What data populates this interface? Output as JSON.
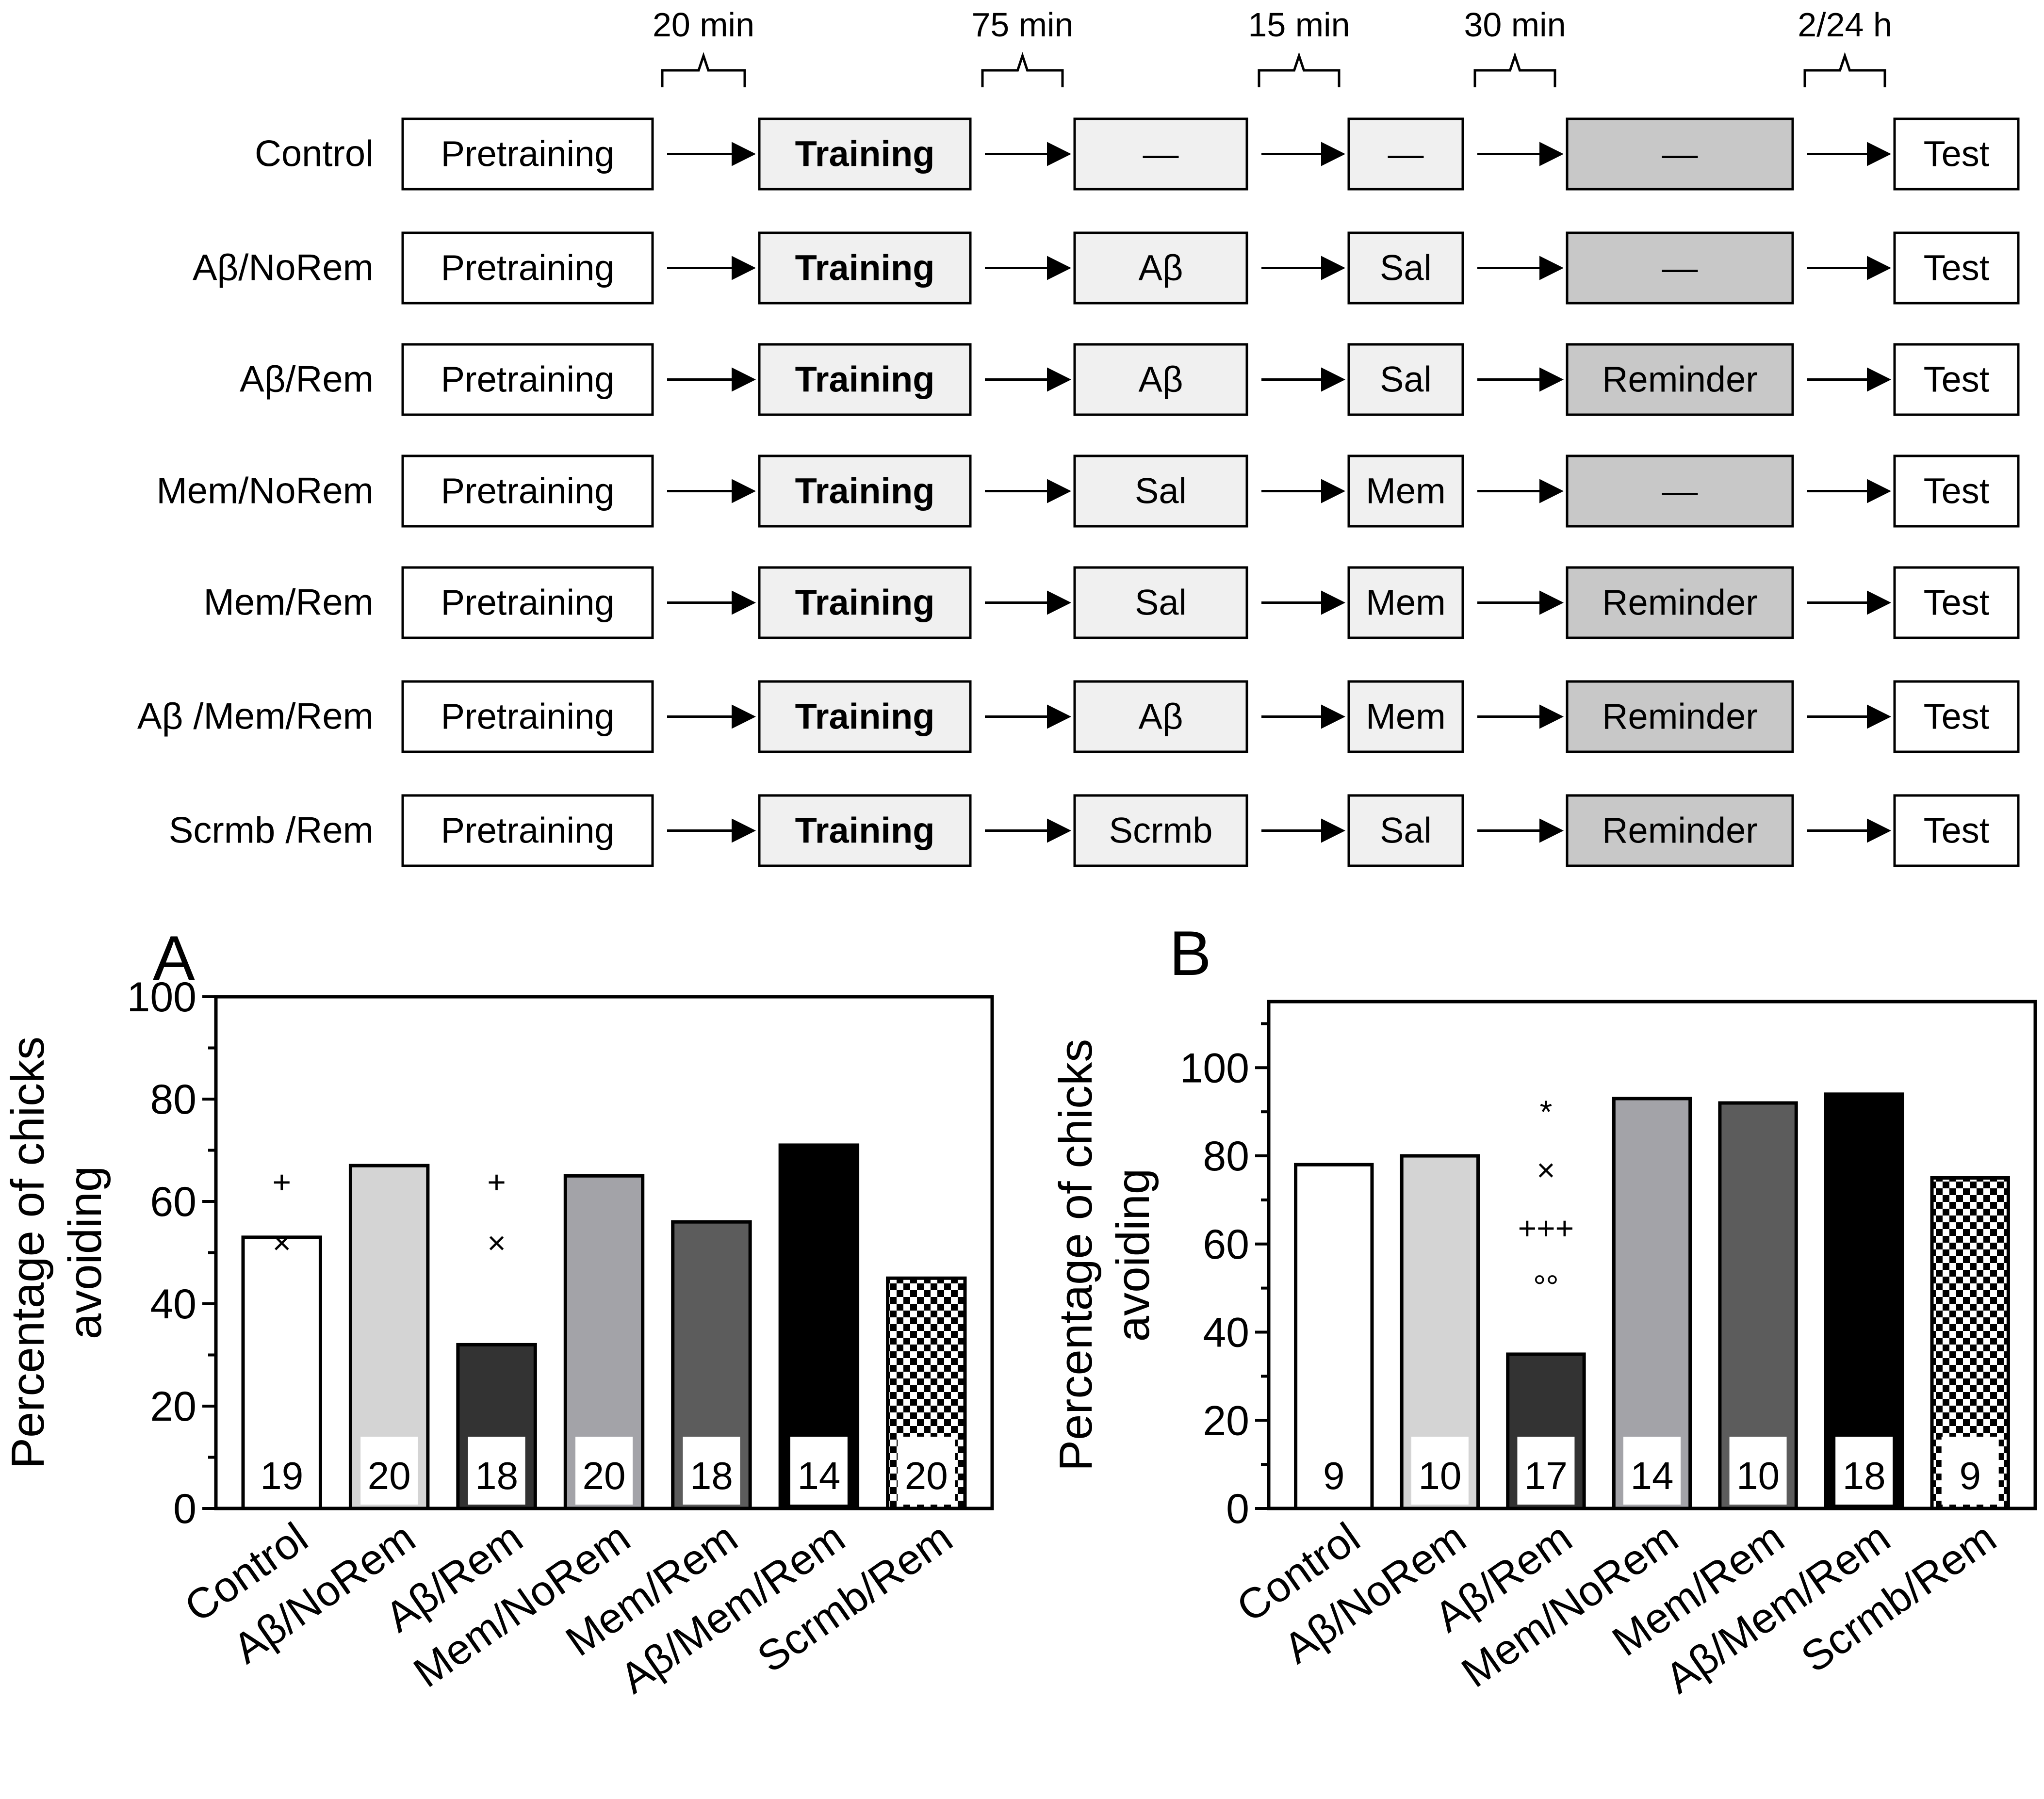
{
  "protocol": {
    "intervals": [
      "20 min",
      "75 min",
      "15 min",
      "30 min",
      "2/24 h"
    ],
    "rows": [
      {
        "group": "Control",
        "steps": [
          "Pretraining",
          "Training",
          "—",
          "—",
          "—",
          "Test"
        ]
      },
      {
        "group": "Aβ/NoRem",
        "steps": [
          "Pretraining",
          "Training",
          "Aβ",
          "Sal",
          "—",
          "Test"
        ]
      },
      {
        "group": "Aβ/Rem",
        "steps": [
          "Pretraining",
          "Training",
          "Aβ",
          "Sal",
          "Reminder",
          "Test"
        ]
      },
      {
        "group": "Mem/NoRem",
        "steps": [
          "Pretraining",
          "Training",
          "Sal",
          "Mem",
          "—",
          "Test"
        ]
      },
      {
        "group": "Mem/Rem",
        "steps": [
          "Pretraining",
          "Training",
          "Sal",
          "Mem",
          "Reminder",
          "Test"
        ]
      },
      {
        "group": "Aβ /Mem/Rem",
        "steps": [
          "Pretraining",
          "Training",
          "Aβ",
          "Mem",
          "Reminder",
          "Test"
        ]
      },
      {
        "group": "Scrmb /Rem",
        "steps": [
          "Pretraining",
          "Training",
          "Scrmb",
          "Sal",
          "Reminder",
          "Test"
        ]
      }
    ],
    "colors": {
      "plain": "#ffffff",
      "light": "#f0f0f0",
      "reminder": "#c8c8c8"
    }
  },
  "chart_data": [
    {
      "type": "bar",
      "panel": "A",
      "ylabel_lines": [
        "Percentage of chicks",
        "avoiding"
      ],
      "ylim": [
        0,
        100
      ],
      "yticks": [
        0,
        20,
        40,
        60,
        80,
        100
      ],
      "categories": [
        "Control",
        "Aβ/NoRem",
        "Aβ/Rem",
        "Mem/NoRem",
        "Mem/Rem",
        "Aβ/Mem/Rem",
        "Scrmb/Rem"
      ],
      "values": [
        53,
        67,
        32,
        65,
        56,
        71,
        45
      ],
      "n": [
        "19",
        "20",
        "18",
        "20",
        "18",
        "14",
        "20"
      ],
      "annotations": [
        [
          "",
          "",
          "+",
          "×"
        ],
        [],
        [
          "+",
          "×"
        ],
        [],
        [],
        [],
        []
      ],
      "fills": [
        "#ffffff",
        "#d4d4d4",
        "#333333",
        "#a3a3a8",
        "#5c5c5c",
        "#000000",
        "checker"
      ]
    },
    {
      "type": "bar",
      "panel": "B",
      "ylabel_lines": [
        "Percentage of chicks",
        "avoiding"
      ],
      "ylim": [
        0,
        115
      ],
      "yticks": [
        0,
        20,
        40,
        60,
        80,
        100
      ],
      "categories": [
        "Control",
        "Aβ/NoRem",
        "Aβ/Rem",
        "Mem/NoRem",
        "Mem/Rem",
        "Aβ/Mem/Rem",
        "Scrmb/Rem"
      ],
      "values": [
        78,
        80,
        35,
        93,
        92,
        94,
        75
      ],
      "n": [
        "9",
        "10",
        "17",
        "14",
        "10",
        "18",
        "9"
      ],
      "annotations": [
        [],
        [],
        [
          "*",
          "×",
          "+++",
          "°°"
        ],
        [],
        [],
        [],
        []
      ],
      "fills": [
        "#ffffff",
        "#d4d4d4",
        "#333333",
        "#a3a3a8",
        "#5c5c5c",
        "#000000",
        "checker"
      ]
    }
  ]
}
